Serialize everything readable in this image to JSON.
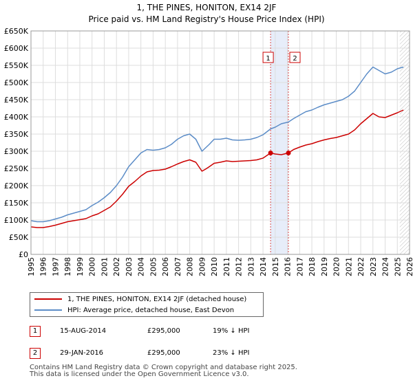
{
  "chart_data": {
    "type": "line",
    "title": "1, THE PINES, HONITON, EX14 2JF",
    "subtitle": "Price paid vs. HM Land Registry's House Price Index (HPI)",
    "xlabel": "",
    "ylabel": "",
    "xlim": [
      1995,
      2026
    ],
    "ylim": [
      0,
      650000
    ],
    "x_ticks": [
      "1995",
      "1996",
      "1997",
      "1998",
      "1999",
      "2000",
      "2001",
      "2002",
      "2003",
      "2004",
      "2005",
      "2006",
      "2007",
      "2008",
      "2009",
      "2010",
      "2011",
      "2012",
      "2013",
      "2014",
      "2015",
      "2016",
      "2017",
      "2018",
      "2019",
      "2020",
      "2021",
      "2022",
      "2023",
      "2024",
      "2025",
      "2026"
    ],
    "y_ticks": [
      {
        "value": 0,
        "label": "£0"
      },
      {
        "value": 50000,
        "label": "£50K"
      },
      {
        "value": 100000,
        "label": "£100K"
      },
      {
        "value": 150000,
        "label": "£150K"
      },
      {
        "value": 200000,
        "label": "£200K"
      },
      {
        "value": 250000,
        "label": "£250K"
      },
      {
        "value": 300000,
        "label": "£300K"
      },
      {
        "value": 350000,
        "label": "£350K"
      },
      {
        "value": 400000,
        "label": "£400K"
      },
      {
        "value": 450000,
        "label": "£450K"
      },
      {
        "value": 500000,
        "label": "£500K"
      },
      {
        "value": 550000,
        "label": "£550K"
      },
      {
        "value": 600000,
        "label": "£600K"
      },
      {
        "value": 650000,
        "label": "£650K"
      }
    ],
    "grid": true,
    "shaded_region": {
      "from": 2014.62,
      "to": 2016.08,
      "color": "#dde6f7"
    },
    "forecast_from": 2025.2,
    "series": [
      {
        "name": "1, THE PINES, HONITON, EX14 2JF (detached house)",
        "color": "#cc0000",
        "x": [
          1995.0,
          1995.5,
          1996.0,
          1996.5,
          1997.0,
          1997.5,
          1998.0,
          1998.5,
          1999.0,
          1999.5,
          2000.0,
          2000.5,
          2001.0,
          2001.5,
          2002.0,
          2002.5,
          2003.0,
          2003.5,
          2004.0,
          2004.5,
          2005.0,
          2005.5,
          2006.0,
          2006.5,
          2007.0,
          2007.5,
          2008.0,
          2008.5,
          2009.0,
          2009.3,
          2009.6,
          2010.0,
          2010.5,
          2011.0,
          2011.5,
          2012.0,
          2012.5,
          2013.0,
          2013.5,
          2014.0,
          2014.62,
          2015.0,
          2015.5,
          2016.08,
          2016.5,
          2017.0,
          2017.5,
          2018.0,
          2018.5,
          2019.0,
          2019.5,
          2020.0,
          2020.5,
          2021.0,
          2021.5,
          2022.0,
          2022.5,
          2023.0,
          2023.5,
          2024.0,
          2024.5,
          2025.0,
          2025.5
        ],
        "values": [
          80000,
          78000,
          78000,
          81000,
          85000,
          90000,
          95000,
          98000,
          101000,
          104000,
          112000,
          118000,
          128000,
          138000,
          155000,
          175000,
          198000,
          212000,
          228000,
          240000,
          244000,
          245000,
          248000,
          255000,
          263000,
          270000,
          275000,
          268000,
          242000,
          248000,
          255000,
          265000,
          268000,
          272000,
          270000,
          271000,
          272000,
          273000,
          275000,
          280000,
          295000,
          292000,
          290000,
          295000,
          305000,
          312000,
          318000,
          322000,
          328000,
          333000,
          337000,
          340000,
          345000,
          350000,
          362000,
          380000,
          395000,
          410000,
          400000,
          398000,
          405000,
          412000,
          420000
        ]
      },
      {
        "name": "HPI: Average price, detached house, East Devon",
        "color": "#5b8cc7",
        "x": [
          1995.0,
          1995.5,
          1996.0,
          1996.5,
          1997.0,
          1997.5,
          1998.0,
          1998.5,
          1999.0,
          1999.5,
          2000.0,
          2000.5,
          2001.0,
          2001.5,
          2002.0,
          2002.5,
          2003.0,
          2003.5,
          2004.0,
          2004.5,
          2005.0,
          2005.5,
          2006.0,
          2006.5,
          2007.0,
          2007.5,
          2008.0,
          2008.5,
          2009.0,
          2009.3,
          2009.6,
          2010.0,
          2010.5,
          2011.0,
          2011.5,
          2012.0,
          2012.5,
          2013.0,
          2013.5,
          2014.0,
          2014.62,
          2015.0,
          2015.5,
          2016.08,
          2016.5,
          2017.0,
          2017.5,
          2018.0,
          2018.5,
          2019.0,
          2019.5,
          2020.0,
          2020.5,
          2021.0,
          2021.5,
          2022.0,
          2022.5,
          2023.0,
          2023.5,
          2024.0,
          2024.5,
          2025.0,
          2025.5
        ],
        "values": [
          98000,
          95000,
          95000,
          98000,
          103000,
          108000,
          115000,
          120000,
          125000,
          130000,
          142000,
          152000,
          165000,
          180000,
          200000,
          225000,
          255000,
          275000,
          295000,
          305000,
          303000,
          305000,
          310000,
          320000,
          335000,
          345000,
          350000,
          335000,
          300000,
          310000,
          320000,
          335000,
          335000,
          338000,
          333000,
          332000,
          333000,
          335000,
          340000,
          348000,
          365000,
          370000,
          380000,
          385000,
          395000,
          405000,
          415000,
          420000,
          428000,
          435000,
          440000,
          445000,
          450000,
          460000,
          475000,
          500000,
          525000,
          545000,
          535000,
          525000,
          530000,
          540000,
          545000
        ]
      }
    ],
    "sale_markers": [
      {
        "label": "1",
        "x": 2014.62,
        "value": 295000
      },
      {
        "label": "2",
        "x": 2016.08,
        "value": 295000
      }
    ]
  },
  "legend": {
    "items": [
      {
        "label": "1, THE PINES, HONITON, EX14 2JF (detached house)",
        "color": "#cc0000"
      },
      {
        "label": "HPI: Average price, detached house, East Devon",
        "color": "#5b8cc7"
      }
    ]
  },
  "sales": [
    {
      "num": "1",
      "date": "15-AUG-2014",
      "price": "£295,000",
      "hpi": "19% ↓ HPI"
    },
    {
      "num": "2",
      "date": "29-JAN-2016",
      "price": "£295,000",
      "hpi": "23% ↓ HPI"
    }
  ],
  "footer": {
    "line1": "Contains HM Land Registry data © Crown copyright and database right 2025.",
    "line2": "This data is licensed under the Open Government Licence v3.0."
  }
}
